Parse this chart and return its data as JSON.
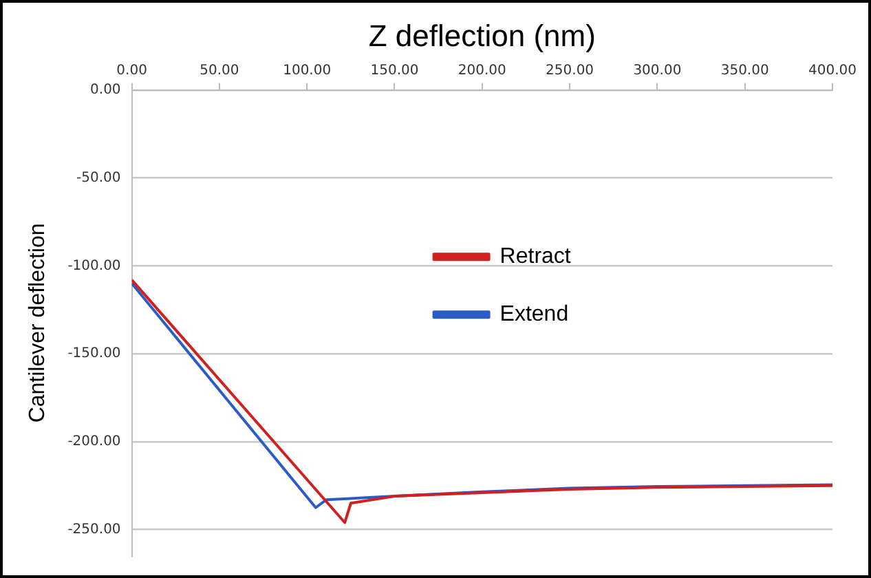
{
  "chart_data": {
    "type": "line",
    "xlabel": "Z deflection (nm)",
    "ylabel": "Cantilever deflection",
    "xlim": [
      0,
      400
    ],
    "xticks": [
      {
        "value": 0,
        "label": "0.00"
      },
      {
        "value": 50,
        "label": "50.00"
      },
      {
        "value": 100,
        "label": "100.00"
      },
      {
        "value": 150,
        "label": "150.00"
      },
      {
        "value": 200,
        "label": "200.00"
      },
      {
        "value": 250,
        "label": "250.00"
      },
      {
        "value": 300,
        "label": "300.00"
      },
      {
        "value": 350,
        "label": "350.00"
      },
      {
        "value": 400,
        "label": "400.00"
      }
    ],
    "ylim": [
      -265,
      0
    ],
    "yticks": [
      {
        "value": 0,
        "label": "0.00"
      },
      {
        "value": -50,
        "label": "-50.00"
      },
      {
        "value": -100,
        "label": "-100.00"
      },
      {
        "value": -150,
        "label": "-150.00"
      },
      {
        "value": -200,
        "label": "-200.00"
      },
      {
        "value": -250,
        "label": "-250.00"
      }
    ],
    "grid": "y",
    "legend": "center",
    "marker": "none",
    "series": [
      {
        "name": "Retract",
        "color": "#d02020",
        "x": [
          0,
          121.6,
          125,
          150,
          200,
          250,
          300,
          350,
          400
        ],
        "values": [
          -108,
          -246,
          -235,
          -231,
          -229,
          -227,
          -226,
          -225.5,
          -225
        ]
      },
      {
        "name": "Extend",
        "color": "#2a5cc8",
        "x": [
          0,
          105,
          111,
          150,
          200,
          250,
          300,
          350,
          400
        ],
        "values": [
          -110,
          -237.5,
          -233,
          -231,
          -228.5,
          -226.5,
          -225.5,
          -225,
          -224.5
        ]
      }
    ]
  }
}
